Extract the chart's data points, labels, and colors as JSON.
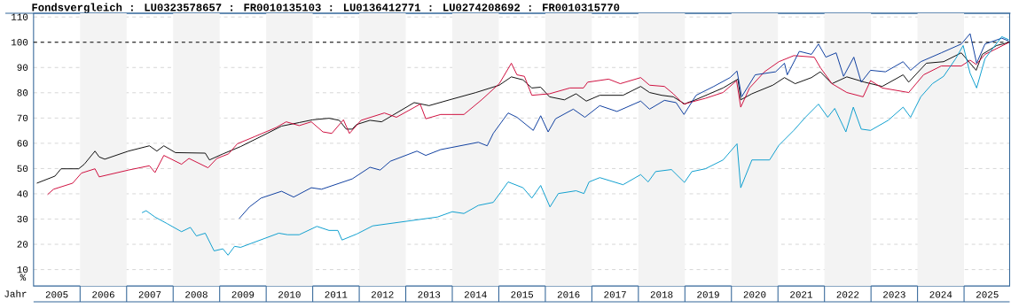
{
  "chart_data": {
    "type": "line",
    "title": "Fondsvergleich : LU0323578657 : FR0010135103 : LU0136412771 : LU0274208692 : FR0010315770",
    "xlabel": "Jahr",
    "ylabel": "%",
    "xlim": [
      2005,
      2025.98
    ],
    "ylim": [
      3.5,
      111.5
    ],
    "xticks": [
      {
        "value": 2005.5,
        "label": "2005"
      },
      {
        "value": 2006.5,
        "label": "2006"
      },
      {
        "value": 2007.5,
        "label": "2007"
      },
      {
        "value": 2008.5,
        "label": "2008"
      },
      {
        "value": 2009.5,
        "label": "2009"
      },
      {
        "value": 2010.5,
        "label": "2010"
      },
      {
        "value": 2011.5,
        "label": "2011"
      },
      {
        "value": 2012.5,
        "label": "2012"
      },
      {
        "value": 2013.5,
        "label": "2013"
      },
      {
        "value": 2014.5,
        "label": "2014"
      },
      {
        "value": 2015.5,
        "label": "2015"
      },
      {
        "value": 2016.5,
        "label": "2016"
      },
      {
        "value": 2017.5,
        "label": "2017"
      },
      {
        "value": 2018.5,
        "label": "2018"
      },
      {
        "value": 2019.5,
        "label": "2019"
      },
      {
        "value": 2020.5,
        "label": "2020"
      },
      {
        "value": 2021.5,
        "label": "2021"
      },
      {
        "value": 2022.5,
        "label": "2022"
      },
      {
        "value": 2023.5,
        "label": "2023"
      },
      {
        "value": 2024.5,
        "label": "2024"
      },
      {
        "value": 2025.5,
        "label": "2025"
      }
    ],
    "yticks": [
      10,
      20,
      30,
      40,
      50,
      60,
      70,
      80,
      90,
      100,
      110
    ],
    "grid": "y",
    "line_style": "solid",
    "ref_lines": [
      {
        "axis": "y",
        "value": 100,
        "color": "#000000",
        "line_style": "dashed"
      }
    ],
    "bands": [
      {
        "axis": "x",
        "from": 2006,
        "to": 2007,
        "color": "#f3f3f3"
      },
      {
        "axis": "x",
        "from": 2008,
        "to": 2009,
        "color": "#f3f3f3"
      },
      {
        "axis": "x",
        "from": 2010,
        "to": 2011,
        "color": "#f3f3f3"
      },
      {
        "axis": "x",
        "from": 2012,
        "to": 2013,
        "color": "#f3f3f3"
      },
      {
        "axis": "x",
        "from": 2014,
        "to": 2015,
        "color": "#f3f3f3"
      },
      {
        "axis": "x",
        "from": 2016,
        "to": 2017,
        "color": "#f3f3f3"
      },
      {
        "axis": "x",
        "from": 2018,
        "to": 2019,
        "color": "#f3f3f3"
      },
      {
        "axis": "x",
        "from": 2020,
        "to": 2021,
        "color": "#f3f3f3"
      },
      {
        "axis": "x",
        "from": 2022,
        "to": 2023,
        "color": "#f3f3f3"
      },
      {
        "axis": "x",
        "from": 2024,
        "to": 2025,
        "color": "#f3f3f3"
      }
    ],
    "series": [
      {
        "color": "#000000",
        "x": [
          2005.07,
          2005.46,
          2005.59,
          2005.97,
          2006.09,
          2006.32,
          2006.41,
          2006.53,
          2007.04,
          2007.49,
          2007.65,
          2007.8,
          2008.05,
          2008.69,
          2008.78,
          2009.07,
          2009.45,
          2010.02,
          2010.33,
          2010.71,
          2011.0,
          2011.35,
          2011.57,
          2011.72,
          2011.85,
          2011.94,
          2012.23,
          2012.48,
          2013.18,
          2013.5,
          2013.94,
          2014.51,
          2015.01,
          2015.27,
          2015.52,
          2015.71,
          2015.9,
          2016.09,
          2016.41,
          2016.66,
          2016.88,
          2017.17,
          2017.67,
          2018.05,
          2018.24,
          2018.5,
          2018.75,
          2019.0,
          2019.06,
          2019.2,
          2019.82,
          2020.14,
          2020.2,
          2020.44,
          2020.89,
          2021.14,
          2021.37,
          2021.72,
          2021.91,
          2022.16,
          2022.48,
          2022.86,
          2023.24,
          2023.69,
          2023.81,
          2024.19,
          2024.56,
          2024.94,
          2025.26,
          2025.39,
          2025.7,
          2025.96
        ],
        "values": [
          44.2,
          47.0,
          49.9,
          49.9,
          51.7,
          56.9,
          54.6,
          53.7,
          56.9,
          59.0,
          56.9,
          59.0,
          56.3,
          56.1,
          53.4,
          55.8,
          58.7,
          63.9,
          66.8,
          68.2,
          69.3,
          69.9,
          69.1,
          65.6,
          65.6,
          67.4,
          69.1,
          68.5,
          76.1,
          74.9,
          77.2,
          80.1,
          83.0,
          86.3,
          85.1,
          81.9,
          82.2,
          78.4,
          77.2,
          79.6,
          76.7,
          79.0,
          79.0,
          82.5,
          80.1,
          79.0,
          78.4,
          75.5,
          76.1,
          77.0,
          81.9,
          85.4,
          77.2,
          79.6,
          83.0,
          86.0,
          83.6,
          86.0,
          88.3,
          83.6,
          86.3,
          84.2,
          82.5,
          87.1,
          84.2,
          91.7,
          92.3,
          95.8,
          88.9,
          95.2,
          98.7,
          99.9
        ]
      },
      {
        "color": "#cc0033",
        "x": [
          2005.3,
          2005.43,
          2005.84,
          2006.03,
          2006.32,
          2006.41,
          2007.04,
          2007.49,
          2007.61,
          2007.8,
          2008.18,
          2008.34,
          2008.75,
          2008.94,
          2009.19,
          2009.38,
          2009.76,
          2010.21,
          2010.43,
          2010.71,
          2010.97,
          2011.22,
          2011.41,
          2011.66,
          2011.79,
          2012.04,
          2012.54,
          2012.8,
          2013.31,
          2013.43,
          2013.75,
          2014.25,
          2014.63,
          2015.01,
          2015.27,
          2015.39,
          2015.55,
          2015.71,
          2016.09,
          2016.53,
          2016.82,
          2016.91,
          2017.36,
          2017.61,
          2018.05,
          2018.24,
          2018.56,
          2018.75,
          2018.97,
          2019.44,
          2019.82,
          2020.11,
          2020.2,
          2020.39,
          2020.71,
          2021.02,
          2021.34,
          2021.78,
          2021.91,
          2022.16,
          2022.48,
          2022.83,
          2022.99,
          2023.24,
          2023.81,
          2024.13,
          2024.51,
          2024.94,
          2025.13,
          2025.26,
          2025.45,
          2025.96
        ],
        "values": [
          39.7,
          41.8,
          44.2,
          48.2,
          49.9,
          46.7,
          49.4,
          51.1,
          48.4,
          55.2,
          51.7,
          54.0,
          50.3,
          54.0,
          55.8,
          59.8,
          62.7,
          66.2,
          68.5,
          67.0,
          68.5,
          64.5,
          63.9,
          69.3,
          63.9,
          69.1,
          72.0,
          70.3,
          75.5,
          69.7,
          71.4,
          71.4,
          77.2,
          83.6,
          91.7,
          87.1,
          86.5,
          79.0,
          79.6,
          81.9,
          81.9,
          84.2,
          85.4,
          83.6,
          86.0,
          83.0,
          82.5,
          79.6,
          75.5,
          77.8,
          80.1,
          84.8,
          74.3,
          81.9,
          88.3,
          92.3,
          94.7,
          94.1,
          90.0,
          83.6,
          80.1,
          78.4,
          84.8,
          81.9,
          80.1,
          87.1,
          90.6,
          90.6,
          92.9,
          91.2,
          95.2,
          99.9
        ]
      },
      {
        "color": "#003399",
        "x": [
          2009.42,
          2009.64,
          2009.89,
          2010.33,
          2010.59,
          2010.97,
          2011.19,
          2011.85,
          2012.23,
          2012.45,
          2012.67,
          2013.24,
          2013.43,
          2013.75,
          2014.56,
          2014.75,
          2014.88,
          2015.2,
          2015.39,
          2015.74,
          2015.9,
          2016.06,
          2016.22,
          2016.6,
          2016.85,
          2017.17,
          2017.54,
          2018.05,
          2018.24,
          2018.56,
          2018.81,
          2018.98,
          2019.24,
          2019.62,
          2019.97,
          2020.12,
          2020.22,
          2020.51,
          2020.95,
          2021.14,
          2021.2,
          2021.46,
          2021.72,
          2021.87,
          2022.03,
          2022.25,
          2022.41,
          2022.63,
          2022.79,
          2022.99,
          2023.31,
          2023.69,
          2023.85,
          2024.07,
          2024.51,
          2024.94,
          2025.13,
          2025.27,
          2025.45,
          2025.81,
          2025.96
        ],
        "values": [
          30.2,
          34.8,
          38.3,
          41.0,
          38.7,
          42.4,
          41.8,
          45.9,
          50.5,
          49.4,
          52.9,
          56.9,
          55.2,
          57.5,
          60.4,
          59.0,
          63.9,
          72.0,
          70.3,
          65.1,
          70.9,
          64.5,
          69.7,
          73.5,
          70.3,
          74.9,
          72.6,
          76.7,
          73.5,
          77.0,
          76.1,
          71.4,
          79.0,
          82.5,
          86.0,
          88.6,
          78.4,
          87.1,
          88.3,
          91.7,
          87.1,
          96.4,
          95.2,
          99.3,
          94.1,
          95.8,
          86.5,
          94.1,
          84.2,
          88.9,
          88.3,
          92.3,
          88.9,
          92.3,
          95.8,
          99.3,
          103.4,
          91.7,
          99.3,
          101.6,
          100.5
        ]
      },
      {
        "color": "#0099cc",
        "x": [
          2007.33,
          2007.42,
          2007.61,
          2007.87,
          2008.18,
          2008.37,
          2008.5,
          2008.69,
          2008.88,
          2009.07,
          2009.18,
          2009.32,
          2009.45,
          2010.27,
          2010.46,
          2010.71,
          2011.09,
          2011.35,
          2011.54,
          2011.63,
          2011.95,
          2012.29,
          2013.68,
          2014.0,
          2014.25,
          2014.56,
          2014.88,
          2015.04,
          2015.2,
          2015.52,
          2015.71,
          2015.9,
          2016.1,
          2016.28,
          2016.66,
          2016.83,
          2016.94,
          2017.17,
          2017.67,
          2018.05,
          2018.21,
          2018.37,
          2018.71,
          2018.99,
          2019.15,
          2019.44,
          2019.82,
          2020.12,
          2020.2,
          2020.44,
          2020.82,
          2021.02,
          2021.34,
          2021.59,
          2021.87,
          2022.07,
          2022.22,
          2022.46,
          2022.62,
          2022.79,
          2022.99,
          2023.37,
          2023.69,
          2023.85,
          2024.07,
          2024.32,
          2024.56,
          2024.82,
          2024.98,
          2025.13,
          2025.27,
          2025.45,
          2025.81,
          2025.96
        ],
        "values": [
          32.5,
          33.3,
          30.8,
          28.2,
          25.0,
          26.7,
          23.3,
          24.4,
          17.4,
          18.2,
          15.7,
          19.2,
          18.8,
          24.4,
          23.8,
          23.8,
          27.1,
          25.5,
          25.5,
          21.7,
          24.1,
          27.3,
          30.8,
          32.9,
          32.2,
          35.4,
          36.6,
          40.6,
          44.7,
          42.4,
          38.3,
          43.3,
          34.8,
          40.1,
          41.2,
          40.1,
          44.7,
          46.4,
          43.6,
          47.6,
          44.7,
          48.8,
          49.6,
          44.5,
          48.8,
          49.9,
          53.4,
          59.8,
          42.4,
          53.4,
          53.4,
          59.2,
          65.1,
          70.3,
          75.5,
          70.3,
          73.8,
          64.5,
          74.3,
          65.6,
          65.1,
          69.1,
          74.3,
          70.3,
          78.4,
          83.6,
          86.5,
          93.5,
          98.7,
          87.7,
          81.9,
          93.5,
          102.2,
          101.0
        ]
      }
    ]
  }
}
